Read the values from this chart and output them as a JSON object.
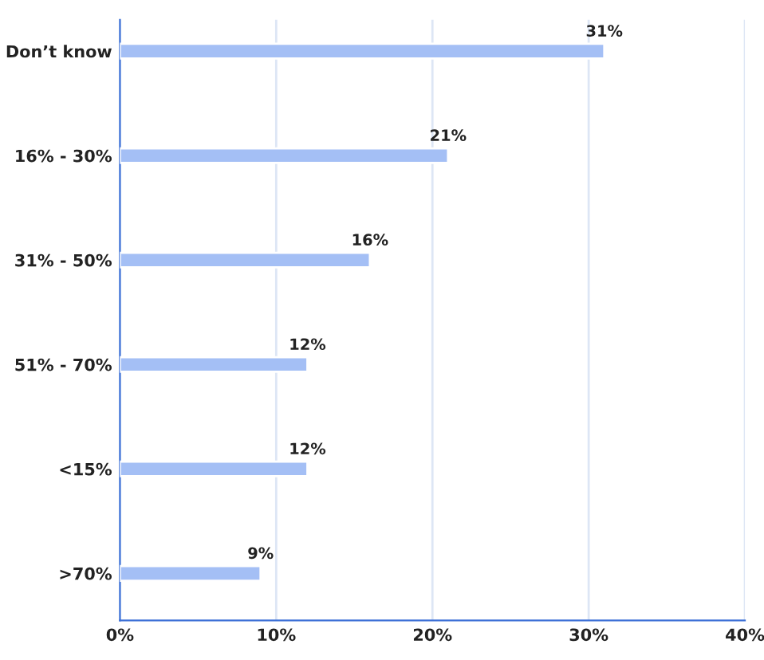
{
  "chart_data": {
    "type": "bar",
    "orientation": "horizontal",
    "categories": [
      "Don’t know",
      "16% - 30%",
      "31% - 50%",
      "51% - 70%",
      "<15%",
      ">70%"
    ],
    "values": [
      31,
      21,
      16,
      12,
      12,
      9
    ],
    "value_labels": [
      "31%",
      "21%",
      "16%",
      "12%",
      "12%",
      "9%"
    ],
    "color": "#a4bff5",
    "xlim": [
      0,
      40
    ],
    "xticks": [
      {
        "value": 0,
        "label": "0%"
      },
      {
        "value": 10,
        "label": "10%"
      },
      {
        "value": 20,
        "label": "20%"
      },
      {
        "value": 30,
        "label": "30%"
      },
      {
        "value": 40,
        "label": "40%"
      }
    ],
    "grid": "x",
    "legend": false
  }
}
